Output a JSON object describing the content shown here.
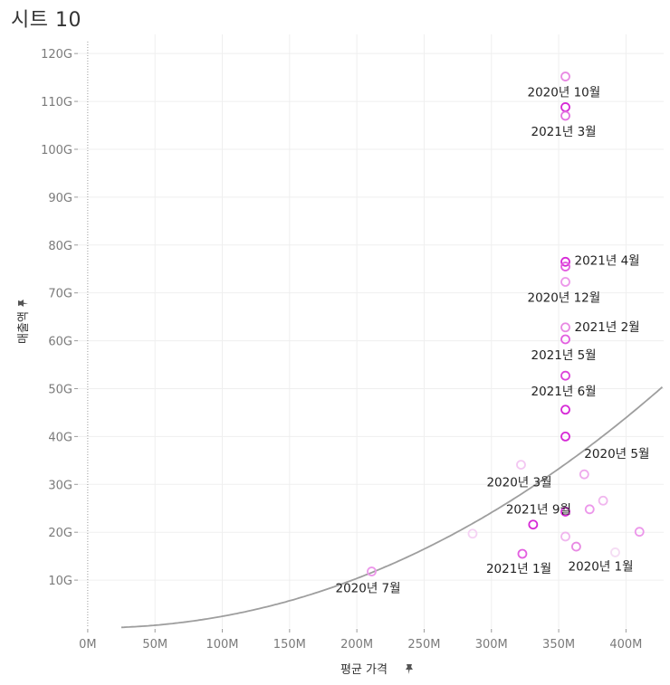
{
  "sheet": {
    "title": "시트 10"
  },
  "chart_data": {
    "type": "scatter",
    "title": "",
    "xlabel": "평균 가격",
    "ylabel": "매출액",
    "pin_icon": "pin-icon",
    "xlim": [
      -8,
      428
    ],
    "ylim": [
      0,
      124
    ],
    "x_ticks": [
      {
        "v": 0,
        "label": "0M"
      },
      {
        "v": 50,
        "label": "50M"
      },
      {
        "v": 100,
        "label": "100M"
      },
      {
        "v": 150,
        "label": "150M"
      },
      {
        "v": 200,
        "label": "200M"
      },
      {
        "v": 250,
        "label": "250M"
      },
      {
        "v": 300,
        "label": "300M"
      },
      {
        "v": 350,
        "label": "350M"
      },
      {
        "v": 400,
        "label": "400M"
      }
    ],
    "y_ticks": [
      {
        "v": 10,
        "label": "10G"
      },
      {
        "v": 20,
        "label": "20G"
      },
      {
        "v": 30,
        "label": "30G"
      },
      {
        "v": 40,
        "label": "40G"
      },
      {
        "v": 50,
        "label": "50G"
      },
      {
        "v": 60,
        "label": "60G"
      },
      {
        "v": 70,
        "label": "70G"
      },
      {
        "v": 80,
        "label": "80G"
      },
      {
        "v": 90,
        "label": "90G"
      },
      {
        "v": 100,
        "label": "100G"
      },
      {
        "v": 110,
        "label": "110G"
      },
      {
        "v": 120,
        "label": "120G"
      }
    ],
    "points": [
      {
        "x": 355,
        "y": 115.2,
        "color": "#e889e3"
      },
      {
        "x": 355,
        "y": 108.8,
        "color": "#d629d6",
        "label": "2020년 10월"
      },
      {
        "x": 355,
        "y": 107.0,
        "color": "#e371e0",
        "label": "2021년 3월"
      },
      {
        "x": 355,
        "y": 76.5,
        "color": "#d629d6"
      },
      {
        "x": 355,
        "y": 75.5,
        "color": "#e35fe0",
        "label": "2021년 4월"
      },
      {
        "x": 355,
        "y": 72.3,
        "color": "#ec97ea",
        "label": "2020년 12월"
      },
      {
        "x": 355,
        "y": 62.8,
        "color": "#e889e3",
        "label": "2021년 2월"
      },
      {
        "x": 355,
        "y": 60.3,
        "color": "#e35fe0",
        "label": "2021년 5월"
      },
      {
        "x": 355,
        "y": 52.7,
        "color": "#dc44da",
        "label": "2021년 6월"
      },
      {
        "x": 355,
        "y": 45.6,
        "color": "#d629d6"
      },
      {
        "x": 355,
        "y": 40.0,
        "color": "#d629d6"
      },
      {
        "x": 369,
        "y": 32.1,
        "color": "#eeaaec",
        "label": "2020년 5월"
      },
      {
        "x": 322,
        "y": 34.1,
        "color": "#f3c7f2",
        "label": "2020년 3월"
      },
      {
        "x": 383,
        "y": 26.6,
        "color": "#f0b6ee"
      },
      {
        "x": 373,
        "y": 24.8,
        "color": "#ec97ea"
      },
      {
        "x": 355,
        "y": 24.3,
        "color": "#d629d6"
      },
      {
        "x": 331,
        "y": 21.6,
        "color": "#d629d6",
        "label": "2021년 9월"
      },
      {
        "x": 410,
        "y": 20.1,
        "color": "#ec97ea"
      },
      {
        "x": 286,
        "y": 19.7,
        "color": "#f5d2f4"
      },
      {
        "x": 355,
        "y": 19.1,
        "color": "#f0b6ee"
      },
      {
        "x": 363,
        "y": 17.0,
        "color": "#e889e3"
      },
      {
        "x": 392,
        "y": 15.8,
        "color": "#f5dcf4",
        "label": "2020년 1월"
      },
      {
        "x": 323,
        "y": 15.5,
        "color": "#e35fe0",
        "label": "2021년 1월"
      },
      {
        "x": 211,
        "y": 11.8,
        "color": "#ec97ea",
        "label": "2020년 7월"
      }
    ],
    "annotations": [
      {
        "text_key": 1,
        "dx": -42,
        "dy": -12
      },
      {
        "text_key": 2,
        "dx": -38,
        "dy": 22
      },
      {
        "text_key": 4,
        "dx": 10,
        "dy": -2
      },
      {
        "text_key": 5,
        "dx": -42,
        "dy": 22
      },
      {
        "text_key": 6,
        "dx": 10,
        "dy": 4
      },
      {
        "text_key": 7,
        "dx": -38,
        "dy": 22
      },
      {
        "text_key": 8,
        "dx": -38,
        "dy": 22
      },
      {
        "text_key": 11,
        "dx": 0,
        "dy": -18
      },
      {
        "text_key": 12,
        "dx": -38,
        "dy": 24
      },
      {
        "text_key": 16,
        "dx": -30,
        "dy": -12
      },
      {
        "text_key": 21,
        "dx": -52,
        "dy": 20
      },
      {
        "text_key": 22,
        "dx": -40,
        "dy": 21
      },
      {
        "text_key": 23,
        "dx": -40,
        "dy": 23
      }
    ],
    "trend": {
      "type": "power",
      "a": 0.000165,
      "b": 2.085,
      "color": "#9e9e9e"
    },
    "grid": true,
    "legend": "none"
  }
}
